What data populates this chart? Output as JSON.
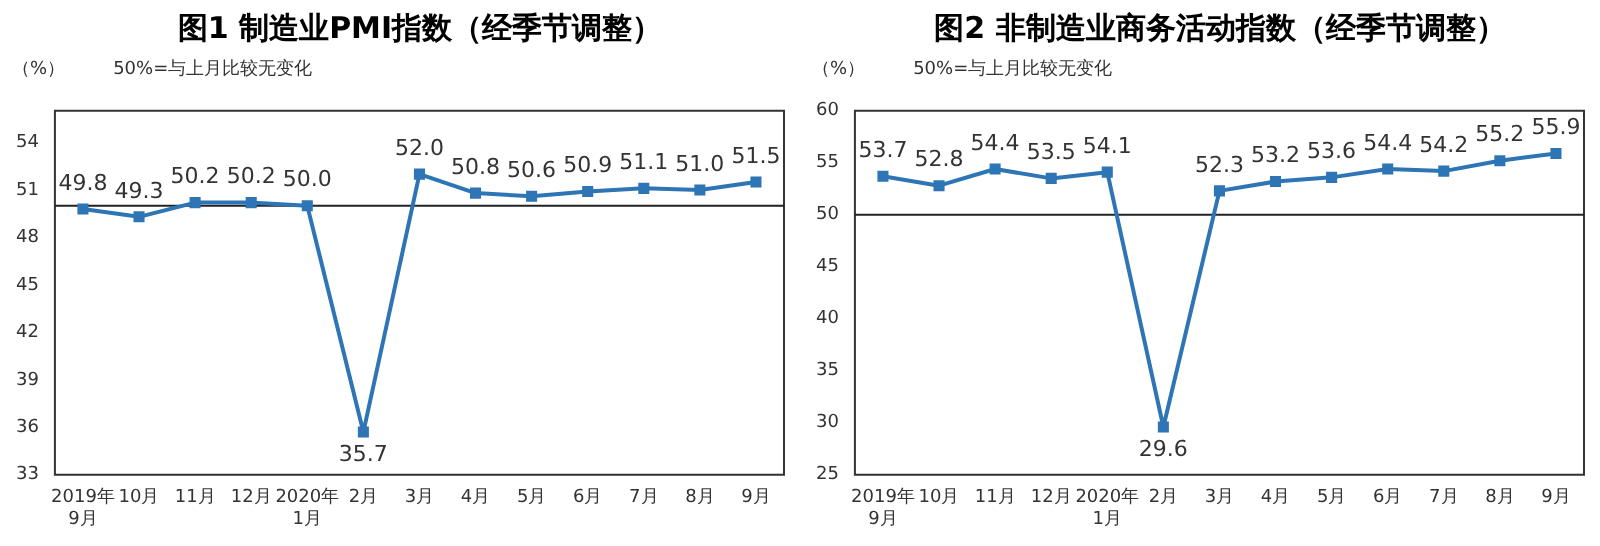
{
  "chart_data": [
    {
      "type": "line",
      "title": "图1  制造业PMI指数（经季节调整）",
      "ylabel": "（%）",
      "annotations": [
        "50%=与上月比较无变化"
      ],
      "categories": [
        "2019年\n9月",
        "10月",
        "11月",
        "12月",
        "2020年\n1月",
        "2月",
        "3月",
        "4月",
        "5月",
        "6月",
        "7月",
        "8月",
        "9月"
      ],
      "series": [
        {
          "color": "#2e75b6",
          "values": [
            49.8,
            49.3,
            50.2,
            50.2,
            50.0,
            35.7,
            52.0,
            50.8,
            50.6,
            50.9,
            51.1,
            51.0,
            51.5
          ],
          "value_labels": [
            "49.8",
            "49.3",
            "50.2",
            "50.2",
            "50.0",
            "35.7",
            "52.0",
            "50.8",
            "50.6",
            "50.9",
            "51.1",
            "51.0",
            "51.5"
          ]
        }
      ],
      "ylim": [
        33,
        56
      ],
      "yticks": [
        33,
        36,
        39,
        42,
        45,
        48,
        51,
        54
      ],
      "ref_lines": [
        {
          "axis": "y",
          "value": 50
        }
      ],
      "marker": "square",
      "grid": false,
      "legend": false
    },
    {
      "type": "line",
      "title": "图2  非制造业商务活动指数（经季节调整）",
      "ylabel": "（%）",
      "annotations": [
        "50%=与上月比较无变化"
      ],
      "categories": [
        "2019年\n9月",
        "10月",
        "11月",
        "12月",
        "2020年\n1月",
        "2月",
        "3月",
        "4月",
        "5月",
        "6月",
        "7月",
        "8月",
        "9月"
      ],
      "series": [
        {
          "color": "#2e75b6",
          "values": [
            53.7,
            52.8,
            54.4,
            53.5,
            54.1,
            29.6,
            52.3,
            53.2,
            53.6,
            54.4,
            54.2,
            55.2,
            55.9
          ],
          "value_labels": [
            "53.7",
            "52.8",
            "54.4",
            "53.5",
            "54.1",
            "29.6",
            "52.3",
            "53.2",
            "53.6",
            "54.4",
            "54.2",
            "55.2",
            "55.9"
          ]
        }
      ],
      "ylim": [
        25,
        60
      ],
      "yticks": [
        25,
        30,
        35,
        40,
        45,
        50,
        55,
        60
      ],
      "ref_lines": [
        {
          "axis": "y",
          "value": 50
        }
      ],
      "marker": "square",
      "grid": false,
      "legend": false
    }
  ]
}
